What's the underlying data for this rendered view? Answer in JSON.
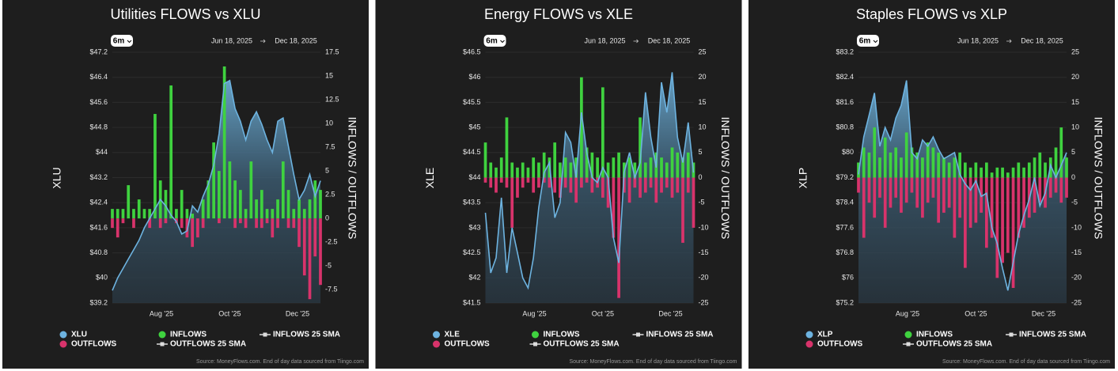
{
  "chart_data": [
    {
      "type": "bar_line",
      "title": "Utilities FLOWS vs XLU",
      "range_button": "6m",
      "date_start": "Jun 18, 2025",
      "date_end": "Dec 18, 2025",
      "ylabel": "XLU",
      "y2label": "INFLOWS / OUTFLOWS",
      "source": "Source: MoneyFlows.com. End of day data sourced from Tiingo.com",
      "xlim": [
        0,
        39
      ],
      "xticks": [
        {
          "value": 9.2,
          "label": "Aug '25"
        },
        {
          "value": 22,
          "label": "Oct '25"
        },
        {
          "value": 34.7,
          "label": "Dec '25"
        }
      ],
      "ylim": [
        39.2,
        47.2
      ],
      "yticks": [
        {
          "value": 39.2,
          "label": "$39.2"
        },
        {
          "value": 40,
          "label": "$40"
        },
        {
          "value": 40.8,
          "label": "$40.8"
        },
        {
          "value": 41.6,
          "label": "$41.6"
        },
        {
          "value": 42.4,
          "label": "$42.4"
        },
        {
          "value": 43.2,
          "label": "$43.2"
        },
        {
          "value": 44,
          "label": "$44"
        },
        {
          "value": 44.8,
          "label": "$44.8"
        },
        {
          "value": 45.6,
          "label": "$45.6"
        },
        {
          "value": 46.4,
          "label": "$46.4"
        },
        {
          "value": 47.2,
          "label": "$47.2"
        }
      ],
      "y2lim": [
        -8.9,
        17.5
      ],
      "y2ticks": [
        -7.5,
        -5,
        -2.5,
        0,
        2.5,
        5,
        7.5,
        10,
        12.5,
        15,
        17.5
      ],
      "series": [
        {
          "name": "XLU",
          "color": "#6db3e0",
          "values": [
            39.6,
            40.0,
            40.3,
            40.6,
            40.9,
            41.2,
            41.6,
            41.9,
            42.2,
            42.5,
            42.3,
            42.0,
            41.8,
            41.4,
            41.5,
            42.3,
            42.1,
            42.6,
            43.0,
            43.6,
            44.6,
            46.2,
            46.3,
            45.4,
            45.0,
            44.4,
            45.0,
            45.3,
            44.9,
            44.4,
            44.0,
            45.0,
            45.1,
            44.2,
            43.3,
            42.5,
            42.8,
            43.3,
            42.6,
            43.1
          ]
        },
        {
          "name": "INFLOWS",
          "color": "#3fd23f",
          "axis": "y2",
          "values": [
            1,
            1,
            1,
            3.5,
            1,
            2,
            1,
            1,
            11,
            4,
            3,
            14,
            1,
            3,
            1,
            0.5,
            null,
            2,
            4,
            8,
            5,
            16,
            6,
            4,
            3,
            1,
            6,
            2,
            3,
            1,
            1,
            2,
            6,
            3,
            1,
            2,
            1,
            2,
            4,
            3
          ]
        },
        {
          "name": "OUTFLOWS",
          "color": "#d8336b",
          "axis": "y2",
          "values": [
            -1,
            -2,
            -0.5,
            null,
            -1,
            null,
            null,
            -1,
            null,
            -1,
            -0.5,
            null,
            -0.5,
            -1,
            -2,
            -3,
            -2,
            -1,
            null,
            null,
            -0.5,
            null,
            null,
            -1,
            -0.5,
            -1,
            null,
            -1,
            -1,
            -0.5,
            -2,
            -1,
            null,
            -1,
            -1,
            -3,
            -6,
            -8.5,
            -4,
            -7
          ]
        }
      ],
      "legend_items": [
        "INFLOWS 25 SMA",
        "OUTFLOWS 25 SMA"
      ]
    },
    {
      "type": "bar_line",
      "title": "Energy FLOWS vs XLE",
      "range_button": "6m",
      "date_start": "Jun 18, 2025",
      "date_end": "Dec 18, 2025",
      "ylabel": "XLE",
      "y2label": "INFLOWS / OUTFLOWS",
      "source": "Source: MoneyFlows.com. End of day data sourced from Tiingo.com",
      "xlim": [
        0,
        39
      ],
      "xticks": [
        {
          "value": 9.2,
          "label": "Aug '25"
        },
        {
          "value": 22,
          "label": "Oct '25"
        },
        {
          "value": 34.7,
          "label": "Dec '25"
        }
      ],
      "ylim": [
        41.5,
        46.5
      ],
      "yticks": [
        {
          "value": 41.5,
          "label": "$41.5"
        },
        {
          "value": 42,
          "label": "$42"
        },
        {
          "value": 42.5,
          "label": "$42.5"
        },
        {
          "value": 43,
          "label": "$43"
        },
        {
          "value": 43.5,
          "label": "$43.5"
        },
        {
          "value": 44,
          "label": "$44"
        },
        {
          "value": 44.5,
          "label": "$44.5"
        },
        {
          "value": 45,
          "label": "$45"
        },
        {
          "value": 45.5,
          "label": "$45.5"
        },
        {
          "value": 46,
          "label": "$46"
        },
        {
          "value": 46.5,
          "label": "$46.5"
        }
      ],
      "y2lim": [
        -25,
        25
      ],
      "y2ticks": [
        -25,
        -20,
        -15,
        -10,
        -5,
        0,
        5,
        10,
        15,
        20,
        25
      ],
      "series": [
        {
          "name": "XLE",
          "color": "#6db3e0",
          "values": [
            43.3,
            42.1,
            42.4,
            43.6,
            42.1,
            43.0,
            42.5,
            42.0,
            41.8,
            42.4,
            43.4,
            44.1,
            44.3,
            43.2,
            43.5,
            44.9,
            44.7,
            44.0,
            45.3,
            44.5,
            44.0,
            43.9,
            44.2,
            44.0,
            42.8,
            42.3,
            44.1,
            44.5,
            44.0,
            44.3,
            45.7,
            44.8,
            44.2,
            45.9,
            45.3,
            46.1,
            44.8,
            44.3,
            45.1,
            44.1
          ]
        },
        {
          "name": "INFLOWS",
          "color": "#3fd23f",
          "axis": "y2",
          "values": [
            7,
            3,
            2,
            4,
            12,
            3,
            2,
            3,
            2,
            4,
            3,
            5,
            4,
            7,
            3,
            4,
            3,
            4,
            20,
            6,
            5,
            4,
            18,
            3,
            4,
            5,
            3,
            4,
            3,
            12,
            3,
            4,
            5,
            4,
            3,
            6,
            5,
            4,
            5,
            3
          ]
        },
        {
          "name": "OUTFLOWS",
          "color": "#d8336b",
          "axis": "y2",
          "values": [
            -1,
            -2,
            -3,
            -1,
            -2,
            -10,
            -4,
            -2,
            -1,
            -3,
            -2,
            -1,
            -2,
            -3,
            -4,
            -2,
            -3,
            -5,
            -2,
            -1,
            -3,
            -2,
            -4,
            -6,
            -12,
            -24,
            -3,
            -5,
            -2,
            -4,
            -3,
            -2,
            -5,
            -3,
            -2,
            -4,
            -3,
            -13,
            -3,
            -10
          ]
        }
      ],
      "legend_items": [
        "INFLOWS 25 SMA",
        "OUTFLOWS 25 SMA"
      ]
    },
    {
      "type": "bar_line",
      "title": "Staples FLOWS vs XLP",
      "range_button": "6m",
      "date_start": "Jun 18, 2025",
      "date_end": "Dec 18, 2025",
      "ylabel": "XLP",
      "y2label": "INFLOWS / OUTFLOWS",
      "source": "Source: MoneyFlows.com. End of day data sourced from Tiingo.com",
      "xlim": [
        0,
        39
      ],
      "xticks": [
        {
          "value": 9.2,
          "label": "Aug '25"
        },
        {
          "value": 22,
          "label": "Oct '25"
        },
        {
          "value": 34.7,
          "label": "Dec '25"
        }
      ],
      "ylim": [
        75.2,
        83.2
      ],
      "yticks": [
        {
          "value": 75.2,
          "label": "$75.2"
        },
        {
          "value": 76,
          "label": "$76"
        },
        {
          "value": 76.8,
          "label": "$76.8"
        },
        {
          "value": 77.6,
          "label": "$77.6"
        },
        {
          "value": 78.4,
          "label": "$78.4"
        },
        {
          "value": 79.2,
          "label": "$79.2"
        },
        {
          "value": 80,
          "label": "$80"
        },
        {
          "value": 80.8,
          "label": "$80.8"
        },
        {
          "value": 81.6,
          "label": "$81.6"
        },
        {
          "value": 82.4,
          "label": "$82.4"
        },
        {
          "value": 83.2,
          "label": "$83.2"
        }
      ],
      "y2lim": [
        -25,
        25
      ],
      "y2ticks": [
        -25,
        -20,
        -15,
        -10,
        -5,
        0,
        5,
        10,
        15,
        20,
        25
      ],
      "series": [
        {
          "name": "XLP",
          "color": "#6db3e0",
          "values": [
            79.3,
            80.5,
            81.2,
            81.9,
            80.2,
            80.8,
            80.4,
            81.1,
            81.5,
            82.3,
            80.0,
            79.8,
            80.4,
            80.2,
            80.5,
            80.1,
            79.8,
            79.9,
            80.0,
            79.3,
            79.0,
            78.8,
            79.1,
            78.6,
            78.7,
            77.6,
            77.1,
            76.3,
            75.6,
            76.5,
            77.4,
            78.0,
            78.5,
            79.2,
            78.3,
            78.7,
            79.6,
            79.2,
            79.6,
            80.0
          ]
        },
        {
          "name": "INFLOWS",
          "color": "#3fd23f",
          "axis": "y2",
          "values": [
            3,
            6,
            5,
            10,
            4,
            8,
            5,
            6,
            4,
            9,
            6,
            5,
            4,
            7,
            6,
            5,
            4,
            3,
            4,
            5,
            3,
            2,
            3,
            2,
            3,
            1,
            2,
            2,
            1,
            2,
            3,
            2,
            3,
            4,
            5,
            3,
            4,
            6,
            10,
            4
          ]
        },
        {
          "name": "OUTFLOWS",
          "color": "#d8336b",
          "axis": "y2",
          "values": [
            -3,
            -12,
            -5,
            -8,
            -4,
            -10,
            -6,
            -4,
            -7,
            -5,
            -3,
            -6,
            -8,
            -5,
            -4,
            -9,
            -7,
            -6,
            -12,
            -8,
            -18,
            -10,
            -9,
            -7,
            -14,
            -12,
            -20,
            -17,
            -15,
            -22,
            -12,
            -10,
            -8,
            -7,
            -5,
            -6,
            -4,
            -3,
            -5,
            -4
          ]
        }
      ],
      "legend_items": [
        "INFLOWS 25 SMA",
        "OUTFLOWS 25 SMA"
      ]
    }
  ]
}
